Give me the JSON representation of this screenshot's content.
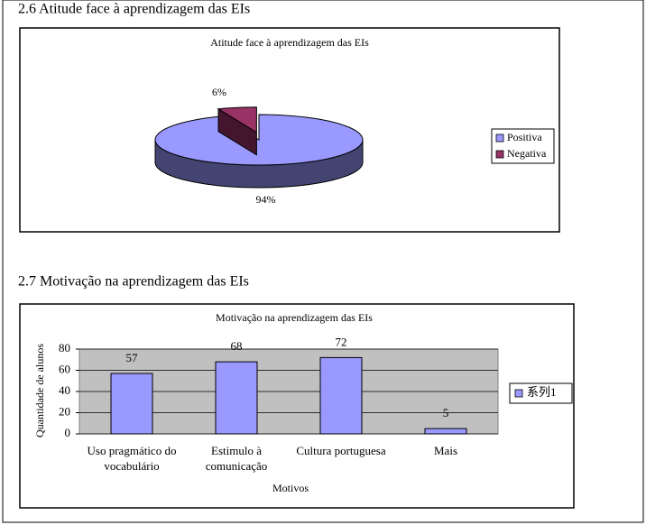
{
  "headings": [
    "2.6 Atitude face à aprendizagem das EIs",
    "2.7 Motivação na aprendizagem das EIs"
  ],
  "chart_data": [
    {
      "type": "pie",
      "title": "Atitude face à aprendizagem das EIs",
      "categories": [
        "Positiva",
        "Negativa"
      ],
      "values": [
        94,
        6
      ],
      "value_labels": [
        "94%",
        "6%"
      ],
      "colors": [
        "#9999ff",
        "#993366"
      ],
      "legend": "right"
    },
    {
      "type": "bar",
      "title": "Motivação na aprendizagem das EIs",
      "categories": [
        "Uso pragmático do vocabulário",
        "Estimulo à comunicação",
        "Cultura portuguesa",
        "Mais"
      ],
      "series": [
        {
          "name": "系列1",
          "color": "#9999ff",
          "values": [
            57,
            68,
            72,
            5
          ]
        }
      ],
      "xlabel": "Motivos",
      "ylabel": "Quantidade de alunos",
      "ylim": [
        0,
        80
      ],
      "yticks": [
        0,
        20,
        40,
        60,
        80
      ],
      "grid": true,
      "legend": "right"
    }
  ]
}
